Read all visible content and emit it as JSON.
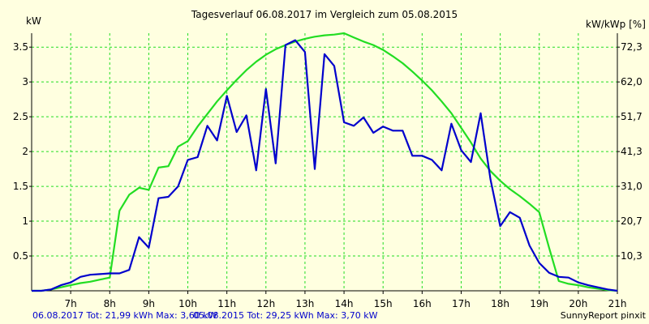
{
  "chart_data": {
    "type": "line",
    "title": "Tagesverlauf 06.08.2017 im Vergleich zum 05.08.2015",
    "ylabel_left": "kW",
    "ylabel_right": "kW/kWp [%]",
    "xlim": [
      6.0,
      21.0
    ],
    "ylim": [
      0,
      3.7
    ],
    "x_ticks": [
      {
        "value": 7,
        "label": "7h"
      },
      {
        "value": 8,
        "label": "8h"
      },
      {
        "value": 9,
        "label": "9h"
      },
      {
        "value": 10,
        "label": "10h"
      },
      {
        "value": 11,
        "label": "11h"
      },
      {
        "value": 12,
        "label": "12h"
      },
      {
        "value": 13,
        "label": "13h"
      },
      {
        "value": 14,
        "label": "14h"
      },
      {
        "value": 15,
        "label": "15h"
      },
      {
        "value": 16,
        "label": "16h"
      },
      {
        "value": 17,
        "label": "17h"
      },
      {
        "value": 18,
        "label": "18h"
      },
      {
        "value": 19,
        "label": "19h"
      },
      {
        "value": 20,
        "label": "20h"
      },
      {
        "value": 21,
        "label": "21h"
      }
    ],
    "y_ticks_left": [
      {
        "value": 0.5,
        "label": "0.5"
      },
      {
        "value": 1,
        "label": "1"
      },
      {
        "value": 1.5,
        "label": "1.5"
      },
      {
        "value": 2,
        "label": "2"
      },
      {
        "value": 2.5,
        "label": "2.5"
      },
      {
        "value": 3,
        "label": "3"
      },
      {
        "value": 3.5,
        "label": "3.5"
      }
    ],
    "y_ticks_right": [
      {
        "value": 0.5,
        "label": "10,3"
      },
      {
        "value": 1,
        "label": "20,7"
      },
      {
        "value": 1.5,
        "label": "31,0"
      },
      {
        "value": 2,
        "label": "41,3"
      },
      {
        "value": 2.5,
        "label": "51,7"
      },
      {
        "value": 3,
        "label": "62,0"
      },
      {
        "value": 3.5,
        "label": "72,3"
      }
    ],
    "grid": true,
    "series": [
      {
        "name": "06.08.2017",
        "color": "#0000cc",
        "x": [
          6.0,
          6.25,
          6.5,
          6.75,
          7.0,
          7.25,
          7.5,
          7.75,
          8.0,
          8.25,
          8.5,
          8.75,
          9.0,
          9.25,
          9.5,
          9.75,
          10.0,
          10.25,
          10.5,
          10.75,
          11.0,
          11.25,
          11.5,
          11.75,
          12.0,
          12.25,
          12.5,
          12.75,
          13.0,
          13.25,
          13.5,
          13.75,
          14.0,
          14.25,
          14.5,
          14.75,
          15.0,
          15.25,
          15.5,
          15.75,
          16.0,
          16.25,
          16.5,
          16.75,
          17.0,
          17.25,
          17.5,
          17.75,
          18.0,
          18.25,
          18.5,
          18.75,
          19.0,
          19.25,
          19.5,
          19.75,
          20.0,
          20.25,
          20.5,
          20.75,
          21.0
        ],
        "values": [
          0.0,
          0.0,
          0.02,
          0.08,
          0.12,
          0.2,
          0.23,
          0.24,
          0.25,
          0.25,
          0.3,
          0.77,
          0.62,
          1.33,
          1.35,
          1.5,
          1.88,
          1.92,
          2.37,
          2.16,
          2.8,
          2.28,
          2.52,
          1.73,
          2.9,
          1.83,
          3.53,
          3.6,
          3.43,
          1.75,
          3.4,
          3.23,
          2.42,
          2.37,
          2.49,
          2.27,
          2.36,
          2.3,
          2.3,
          1.94,
          1.94,
          1.88,
          1.73,
          2.4,
          2.02,
          1.85,
          2.55,
          1.6,
          0.93,
          1.13,
          1.05,
          0.65,
          0.4,
          0.26,
          0.2,
          0.19,
          0.12,
          0.08,
          0.05,
          0.02,
          0.0
        ]
      },
      {
        "name": "05.08.2015",
        "color": "#22dd22",
        "x": [
          6.0,
          6.25,
          6.5,
          6.75,
          7.0,
          7.25,
          7.5,
          7.75,
          8.0,
          8.25,
          8.5,
          8.75,
          9.0,
          9.25,
          9.5,
          9.75,
          10.0,
          10.25,
          10.5,
          10.75,
          11.0,
          11.25,
          11.5,
          11.75,
          12.0,
          12.25,
          12.5,
          12.75,
          13.0,
          13.25,
          13.5,
          13.75,
          14.0,
          14.25,
          14.5,
          14.75,
          15.0,
          15.25,
          15.5,
          15.75,
          16.0,
          16.25,
          16.5,
          16.75,
          17.0,
          17.25,
          17.5,
          17.75,
          18.0,
          18.25,
          18.5,
          18.75,
          19.0,
          19.25,
          19.5,
          19.75,
          20.0,
          20.25,
          20.5,
          20.75,
          21.0
        ],
        "values": [
          0.0,
          0.0,
          0.02,
          0.05,
          0.08,
          0.11,
          0.13,
          0.16,
          0.19,
          1.15,
          1.38,
          1.48,
          1.45,
          1.77,
          1.79,
          2.07,
          2.15,
          2.36,
          2.54,
          2.72,
          2.88,
          3.03,
          3.17,
          3.29,
          3.39,
          3.47,
          3.53,
          3.58,
          3.62,
          3.65,
          3.67,
          3.68,
          3.7,
          3.64,
          3.58,
          3.53,
          3.46,
          3.37,
          3.27,
          3.15,
          3.02,
          2.88,
          2.72,
          2.55,
          2.34,
          2.13,
          1.9,
          1.72,
          1.58,
          1.46,
          1.36,
          1.25,
          1.13,
          0.62,
          0.14,
          0.1,
          0.08,
          0.05,
          0.03,
          0.01,
          0.0
        ]
      }
    ]
  },
  "footer": {
    "series1_text": "06.08.2017 Tot: 21,99 kWh Max: 3,60 kW",
    "series2_text": "05.08.2015 Tot: 29,25 kWh Max: 3,70 kW",
    "credit": "SunnyReport pinxit"
  },
  "colors": {
    "background": "#ffffe0",
    "grid": "#22dd22",
    "axis": "#000000"
  }
}
